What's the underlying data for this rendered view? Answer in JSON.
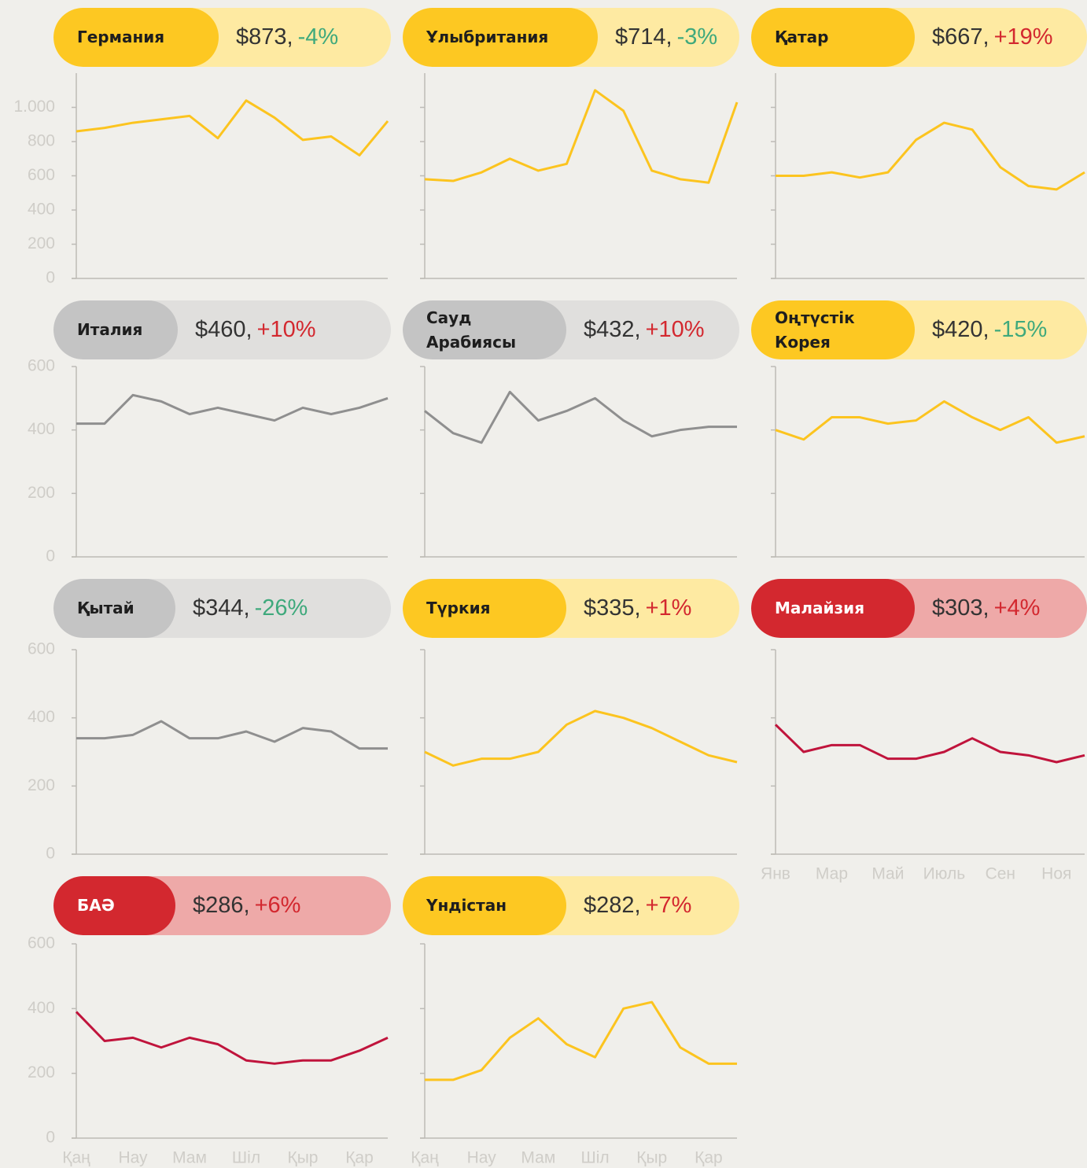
{
  "chart_data": [
    {
      "type": "line",
      "title": "Германия",
      "price": "$873,",
      "change": "-4%",
      "change_color": "#3fa97c",
      "pill_color": "#fdc822",
      "bar_color": "#feeaa2",
      "name_color": "#1e1e1e",
      "color": "#fcc41f",
      "ylim": [
        0,
        1200
      ],
      "yticks": [
        0,
        200,
        400,
        600,
        800,
        {
          "value": 1000,
          "label": "1.000"
        }
      ],
      "values": [
        860,
        880,
        910,
        930,
        950,
        820,
        1040,
        940,
        810,
        830,
        720,
        920
      ]
    },
    {
      "type": "line",
      "title": "Ұлыбритания",
      "price": "$714,",
      "change": "-3%",
      "change_color": "#3fa97c",
      "pill_color": "#fdc822",
      "bar_color": "#feeaa2",
      "name_color": "#1e1e1e",
      "color": "#fcc41f",
      "ylim": [
        0,
        1200
      ],
      "yticks": [
        0,
        200,
        400,
        600,
        800,
        1000
      ],
      "values": [
        580,
        570,
        620,
        700,
        630,
        670,
        1100,
        980,
        630,
        580,
        560,
        1030
      ]
    },
    {
      "type": "line",
      "title": "Қатар",
      "price": "$667,",
      "change": "+19%",
      "change_color": "#d3282f",
      "pill_color": "#fdc822",
      "bar_color": "#feeaa2",
      "name_color": "#1e1e1e",
      "color": "#fcc41f",
      "ylim": [
        0,
        1200
      ],
      "yticks": [
        0,
        200,
        400,
        600,
        800,
        1000
      ],
      "values": [
        600,
        600,
        620,
        590,
        620,
        810,
        910,
        870,
        650,
        540,
        520,
        620
      ]
    },
    {
      "type": "line",
      "title": "Италия",
      "price": "$460,",
      "change": "+10%",
      "change_color": "#d3282f",
      "pill_color": "#c4c4c4",
      "bar_color": "#e0dfdd",
      "name_color": "#1e1e1e",
      "color": "#8f8f8f",
      "ylim": [
        0,
        600
      ],
      "yticks": [
        0,
        200,
        400,
        600
      ],
      "values": [
        420,
        420,
        510,
        490,
        450,
        470,
        450,
        430,
        470,
        450,
        470,
        500
      ]
    },
    {
      "type": "line",
      "title": "Сауд Арабиясы",
      "price": "$432,",
      "change": "+10%",
      "change_color": "#d3282f",
      "pill_color": "#c4c4c4",
      "bar_color": "#e0dfdd",
      "name_color": "#1e1e1e",
      "color": "#8f8f8f",
      "ylim": [
        0,
        600
      ],
      "yticks": [
        0,
        200,
        400,
        600
      ],
      "values": [
        460,
        390,
        360,
        520,
        430,
        460,
        500,
        430,
        380,
        400,
        410,
        410
      ]
    },
    {
      "type": "line",
      "title": "Оңтүстік Корея",
      "price": "$420,",
      "change": "-15%",
      "change_color": "#3fa97c",
      "pill_color": "#fdc822",
      "bar_color": "#feeaa2",
      "name_color": "#1e1e1e",
      "color": "#fcc41f",
      "ylim": [
        0,
        600
      ],
      "yticks": [
        0,
        200,
        400,
        600
      ],
      "values": [
        400,
        370,
        440,
        440,
        420,
        430,
        490,
        440,
        400,
        440,
        360,
        380
      ]
    },
    {
      "type": "line",
      "title": "Қытай",
      "price": "$344,",
      "change": "-26%",
      "change_color": "#3fa97c",
      "pill_color": "#c4c4c4",
      "bar_color": "#e0dfdd",
      "name_color": "#1e1e1e",
      "color": "#8f8f8f",
      "ylim": [
        0,
        600
      ],
      "yticks": [
        0,
        200,
        400,
        600
      ],
      "values": [
        340,
        340,
        350,
        390,
        340,
        340,
        360,
        330,
        370,
        360,
        310,
        310
      ]
    },
    {
      "type": "line",
      "title": "Түркия",
      "price": "$335,",
      "change": "+1%",
      "change_color": "#d3282f",
      "pill_color": "#fdc822",
      "bar_color": "#feeaa2",
      "name_color": "#1e1e1e",
      "color": "#fcc41f",
      "ylim": [
        0,
        600
      ],
      "yticks": [
        0,
        200,
        400,
        600
      ],
      "values": [
        300,
        260,
        280,
        280,
        300,
        380,
        420,
        400,
        370,
        330,
        290,
        270
      ]
    },
    {
      "type": "line",
      "title": "Малайзия",
      "price": "$303,",
      "change": "+4%",
      "change_color": "#d3282f",
      "pill_color": "#d3282f",
      "bar_color": "#eea9a8",
      "name_color": "#ffffff",
      "color": "#c0143c",
      "ylim": [
        0,
        600
      ],
      "yticks": [
        0,
        200,
        400,
        600
      ],
      "categories": [
        "Янв",
        null,
        "Мар",
        null,
        "Май",
        null,
        "Июль",
        null,
        "Сен",
        null,
        "Ноя",
        null
      ],
      "values": [
        380,
        300,
        320,
        320,
        280,
        280,
        300,
        340,
        300,
        290,
        270,
        290
      ]
    },
    {
      "type": "line",
      "title": "БАӘ",
      "price": "$286,",
      "change": "+6%",
      "change_color": "#d3282f",
      "pill_color": "#d3282f",
      "bar_color": "#eea9a8",
      "name_color": "#ffffff",
      "color": "#c0143c",
      "ylim": [
        0,
        600
      ],
      "yticks": [
        0,
        200,
        400,
        600
      ],
      "categories": [
        "Қаң",
        null,
        "Нау",
        null,
        "Мам",
        null,
        "Шіл",
        null,
        "Қыр",
        null,
        "Қар",
        null
      ],
      "values": [
        390,
        300,
        310,
        280,
        310,
        290,
        240,
        230,
        240,
        240,
        270,
        310
      ]
    },
    {
      "type": "line",
      "title": "Үндістан",
      "price": "$282,",
      "change": "+7%",
      "change_color": "#d3282f",
      "pill_color": "#fdc822",
      "bar_color": "#feeaa2",
      "name_color": "#1e1e1e",
      "color": "#fcc41f",
      "ylim": [
        0,
        600
      ],
      "yticks": [
        0,
        200,
        400,
        600
      ],
      "categories": [
        "Қаң",
        null,
        "Нау",
        null,
        "Мам",
        null,
        "Шіл",
        null,
        "Қыр",
        null,
        "Қар",
        null
      ],
      "values": [
        180,
        180,
        210,
        310,
        370,
        290,
        250,
        400,
        420,
        280,
        230,
        230
      ]
    }
  ]
}
